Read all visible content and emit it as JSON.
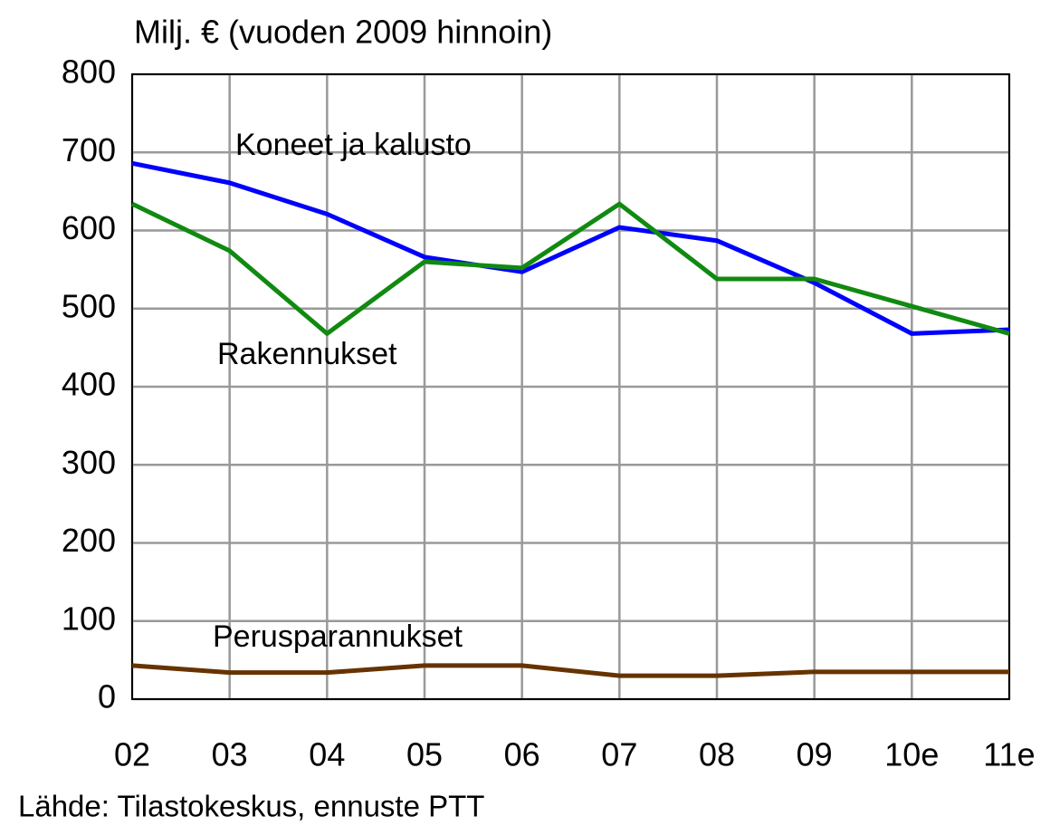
{
  "chart_data": {
    "type": "line",
    "title": "Milj. € (vuoden 2009 hinnoin)",
    "source": "Lähde: Tilastokeskus, ennuste PTT",
    "categories": [
      "02",
      "03",
      "04",
      "05",
      "06",
      "07",
      "08",
      "09",
      "10e",
      "11e"
    ],
    "series": [
      {
        "name": "Koneet ja kalusto",
        "color": "#0000ff",
        "values": [
          686,
          661,
          621,
          566,
          547,
          604,
          587,
          533,
          468,
          473
        ]
      },
      {
        "name": "Rakennukset",
        "color": "#108a10",
        "values": [
          634,
          574,
          468,
          560,
          552,
          634,
          538,
          538,
          503,
          468
        ]
      },
      {
        "name": "Perusparannukset",
        "color": "#663300",
        "values": [
          43,
          34,
          34,
          43,
          43,
          30,
          30,
          35,
          35,
          35
        ]
      }
    ],
    "ylim": [
      0,
      800
    ],
    "yticks": [
      0,
      100,
      200,
      300,
      400,
      500,
      600,
      700,
      800
    ],
    "grid": true
  }
}
